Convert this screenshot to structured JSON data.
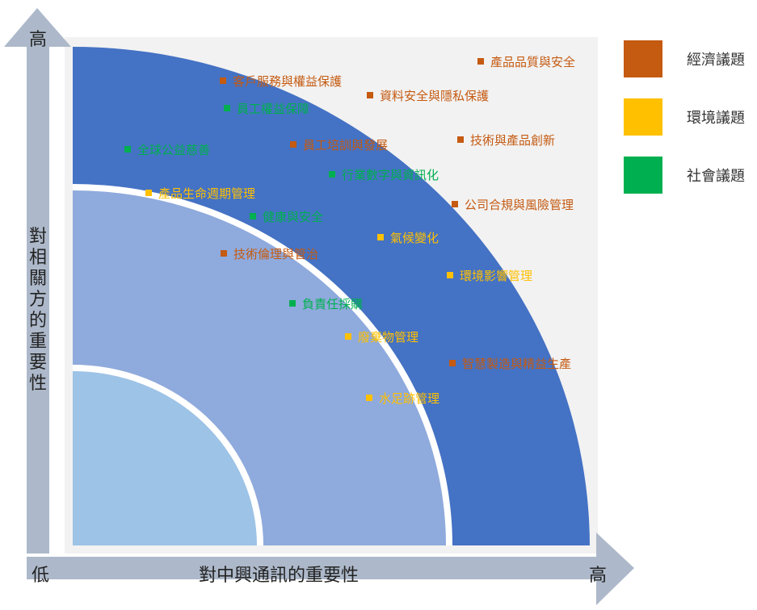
{
  "colors": {
    "economic": "#c55a11",
    "environmental": "#ffc000",
    "social": "#00b050",
    "band_outer": "#4472c4",
    "band_middle": "#8faadc",
    "band_inner": "#9dc3e6",
    "axis": "#adb9ca",
    "panel_bg": "#f2f2f2"
  },
  "legend": [
    {
      "label": "經濟議題",
      "category": "economic"
    },
    {
      "label": "環境議題",
      "category": "environmental"
    },
    {
      "label": "社會議題",
      "category": "social"
    }
  ],
  "axes": {
    "y_high": "高",
    "y_title": "對相關方的重要性",
    "x_low": "低",
    "x_title": "對中興通訊的重要性",
    "x_high": "高"
  },
  "issues": [
    {
      "label": "產品品質與安全",
      "category": "economic"
    },
    {
      "label": "客戶服務與權益保護",
      "category": "economic"
    },
    {
      "label": "資料安全與隱私保護",
      "category": "economic"
    },
    {
      "label": "員工權益保障",
      "category": "social"
    },
    {
      "label": "技術與產品創新",
      "category": "economic"
    },
    {
      "label": "全球公益慈善",
      "category": "social"
    },
    {
      "label": "員工培訓與發展",
      "category": "economic"
    },
    {
      "label": "行業數字與資訊化",
      "category": "social"
    },
    {
      "label": "產品生命週期管理",
      "category": "environmental"
    },
    {
      "label": "公司合規與風險管理",
      "category": "economic"
    },
    {
      "label": "健康與安全",
      "category": "social"
    },
    {
      "label": "氣候變化",
      "category": "environmental"
    },
    {
      "label": "技術倫理與管治",
      "category": "economic"
    },
    {
      "label": "環境影響管理",
      "category": "environmental"
    },
    {
      "label": "負責任採購",
      "category": "social"
    },
    {
      "label": "廢棄物管理",
      "category": "environmental"
    },
    {
      "label": "智慧製造與精益生產",
      "category": "economic"
    },
    {
      "label": "水足跡管理",
      "category": "environmental"
    }
  ]
}
